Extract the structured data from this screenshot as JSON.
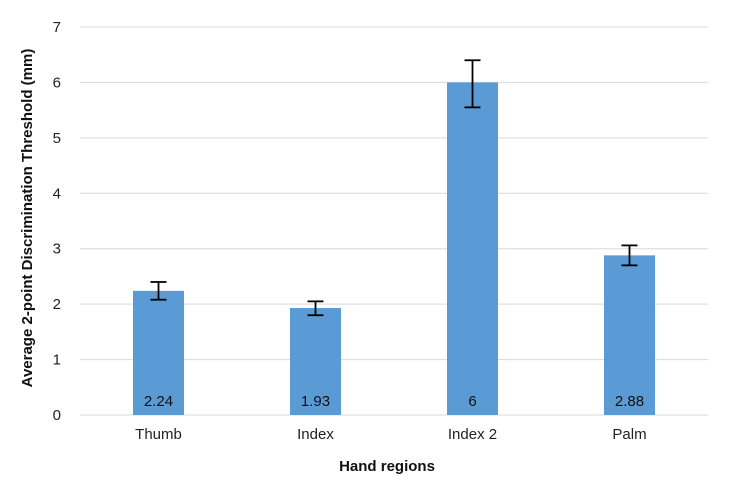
{
  "chart_data": {
    "type": "bar",
    "title": "",
    "xlabel": "Hand regions",
    "ylabel": "Average 2-point Discrimination Threshold (mm)",
    "categories": [
      "Thumb",
      "Index",
      "Index 2",
      "Palm"
    ],
    "series": [
      {
        "values": [
          2.24,
          1.93,
          6,
          2.88
        ],
        "data_labels": [
          "2.24",
          "1.93",
          "6",
          "2.88"
        ],
        "error_low": [
          2.08,
          1.8,
          5.55,
          2.7
        ],
        "error_high": [
          2.4,
          2.05,
          6.4,
          3.06
        ],
        "color": "#5b9bd5"
      }
    ],
    "ylim": [
      0,
      7
    ],
    "yticks": [
      0,
      1,
      2,
      3,
      4,
      5,
      6,
      7
    ],
    "grid": true,
    "legend": "none"
  },
  "colors": {
    "bar": "#5b9bd5",
    "grid": "#d9d9d9",
    "error_bar": "#000000"
  }
}
